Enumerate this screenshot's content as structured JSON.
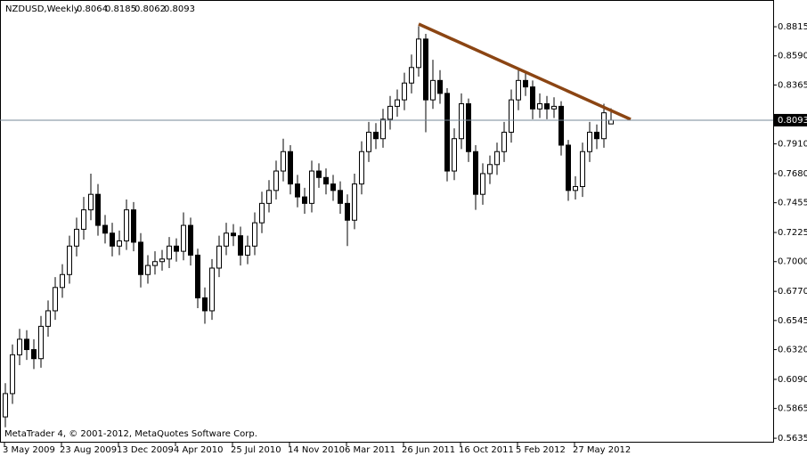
{
  "chart_data": {
    "type": "candlestick",
    "title": "NZDUSD,Weekly",
    "footer": "MetaTrader 4, © 2001-2012, MetaQuotes Software Corp.",
    "open": [
      0.58,
      0.598,
      0.628,
      0.64,
      0.632,
      0.625,
      0.65,
      0.662,
      0.68,
      0.69,
      0.712,
      0.725,
      0.74,
      0.752,
      0.728,
      0.722,
      0.712,
      0.716,
      0.74,
      0.715,
      0.69,
      0.697,
      0.7,
      0.702,
      0.712,
      0.708,
      0.728,
      0.705,
      0.672,
      0.662,
      0.695,
      0.712,
      0.722,
      0.72,
      0.705,
      0.712,
      0.73,
      0.745,
      0.755,
      0.77,
      0.785,
      0.76,
      0.75,
      0.745,
      0.77,
      0.765,
      0.76,
      0.755,
      0.745,
      0.732,
      0.76,
      0.785,
      0.8,
      0.795,
      0.81,
      0.82,
      0.825,
      0.838,
      0.85,
      0.872,
      0.825,
      0.84,
      0.83,
      0.77,
      0.795,
      0.822,
      0.785,
      0.752,
      0.768,
      0.775,
      0.785,
      0.8,
      0.825,
      0.84,
      0.835,
      0.818,
      0.822,
      0.818,
      0.82,
      0.79,
      0.755,
      0.758,
      0.785,
      0.8,
      0.795,
      0.8064
    ],
    "high": [
      0.606,
      0.636,
      0.648,
      0.647,
      0.64,
      0.658,
      0.67,
      0.688,
      0.698,
      0.72,
      0.734,
      0.75,
      0.768,
      0.76,
      0.736,
      0.73,
      0.724,
      0.748,
      0.746,
      0.722,
      0.705,
      0.708,
      0.709,
      0.719,
      0.718,
      0.738,
      0.734,
      0.71,
      0.68,
      0.702,
      0.72,
      0.73,
      0.729,
      0.727,
      0.72,
      0.738,
      0.754,
      0.763,
      0.778,
      0.795,
      0.79,
      0.767,
      0.757,
      0.778,
      0.776,
      0.772,
      0.767,
      0.762,
      0.752,
      0.768,
      0.793,
      0.808,
      0.807,
      0.818,
      0.828,
      0.833,
      0.846,
      0.86,
      0.882,
      0.876,
      0.856,
      0.848,
      0.834,
      0.803,
      0.83,
      0.826,
      0.79,
      0.776,
      0.782,
      0.792,
      0.808,
      0.833,
      0.848,
      0.846,
      0.84,
      0.83,
      0.828,
      0.827,
      0.824,
      0.794,
      0.766,
      0.792,
      0.808,
      0.806,
      0.822,
      0.8185
    ],
    "low": [
      0.572,
      0.59,
      0.62,
      0.624,
      0.617,
      0.618,
      0.642,
      0.655,
      0.672,
      0.683,
      0.704,
      0.717,
      0.732,
      0.72,
      0.714,
      0.704,
      0.705,
      0.709,
      0.708,
      0.68,
      0.683,
      0.69,
      0.693,
      0.695,
      0.7,
      0.701,
      0.697,
      0.664,
      0.652,
      0.655,
      0.688,
      0.705,
      0.712,
      0.697,
      0.698,
      0.705,
      0.722,
      0.738,
      0.748,
      0.762,
      0.752,
      0.742,
      0.737,
      0.738,
      0.757,
      0.752,
      0.747,
      0.737,
      0.712,
      0.725,
      0.752,
      0.777,
      0.787,
      0.788,
      0.802,
      0.812,
      0.817,
      0.83,
      0.843,
      0.8,
      0.818,
      0.822,
      0.762,
      0.763,
      0.787,
      0.777,
      0.74,
      0.744,
      0.76,
      0.767,
      0.777,
      0.792,
      0.817,
      0.828,
      0.81,
      0.811,
      0.81,
      0.811,
      0.782,
      0.747,
      0.748,
      0.75,
      0.777,
      0.787,
      0.788,
      0.8062
    ],
    "close": [
      0.598,
      0.628,
      0.64,
      0.632,
      0.625,
      0.65,
      0.662,
      0.68,
      0.69,
      0.712,
      0.725,
      0.74,
      0.752,
      0.728,
      0.722,
      0.712,
      0.716,
      0.74,
      0.715,
      0.69,
      0.697,
      0.7,
      0.702,
      0.712,
      0.708,
      0.728,
      0.705,
      0.672,
      0.662,
      0.695,
      0.712,
      0.722,
      0.72,
      0.705,
      0.712,
      0.73,
      0.745,
      0.755,
      0.77,
      0.785,
      0.76,
      0.75,
      0.745,
      0.77,
      0.765,
      0.76,
      0.755,
      0.745,
      0.732,
      0.76,
      0.785,
      0.8,
      0.795,
      0.81,
      0.82,
      0.825,
      0.838,
      0.85,
      0.872,
      0.825,
      0.84,
      0.83,
      0.77,
      0.795,
      0.822,
      0.785,
      0.752,
      0.768,
      0.775,
      0.785,
      0.8,
      0.825,
      0.84,
      0.835,
      0.818,
      0.822,
      0.818,
      0.82,
      0.79,
      0.755,
      0.758,
      0.785,
      0.8,
      0.795,
      0.815,
      0.8093
    ],
    "ylim": [
      0.5601,
      0.9008
    ],
    "yticks": [
      0.8815,
      {
        "value": 0.859,
        "label": "0.8590"
      },
      0.8365,
      {
        "value": 0.791,
        "label": "0.7910"
      },
      {
        "value": 0.768,
        "label": "0.7680"
      },
      0.7455,
      0.7225,
      {
        "value": 0.7,
        "label": "0.7000"
      },
      {
        "value": 0.677,
        "label": "0.6770"
      },
      0.6545,
      {
        "value": 0.632,
        "label": "0.6320"
      },
      {
        "value": 0.609,
        "label": "0.6090"
      },
      0.5865,
      0.5635
    ],
    "xticks": [
      {
        "value": 0,
        "label": "3 May 2009"
      },
      {
        "value": 8,
        "label": "23 Aug 2009"
      },
      {
        "value": 16,
        "label": "13 Dec 2009"
      },
      {
        "value": 24,
        "label": "4 Apr 2010"
      },
      {
        "value": 32,
        "label": "25 Jul 2010"
      },
      {
        "value": 40,
        "label": "14 Nov 2010"
      },
      {
        "value": 48,
        "label": "6 Mar 2011"
      },
      {
        "value": 56,
        "label": "26 Jun 2011"
      },
      {
        "value": 64,
        "label": "16 Oct 2011"
      },
      {
        "value": 72,
        "label": "5 Feb 2012"
      },
      {
        "value": 80,
        "label": "27 May 2012"
      }
    ],
    "bull_color": "#ffffff",
    "bear_color": "#000000",
    "outline_color": "#000000",
    "price_line_color": "#778899",
    "trendline_color": "#8b4513"
  }
}
